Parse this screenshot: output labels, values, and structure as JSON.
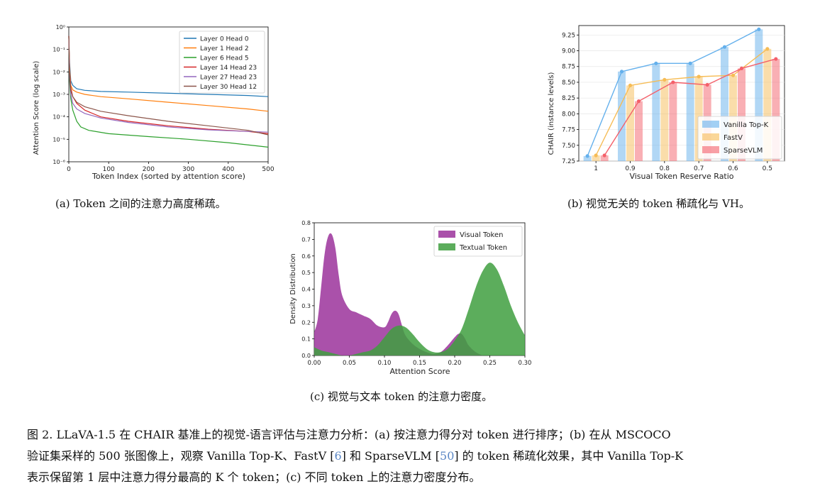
{
  "figure_a": {
    "subcaption": "(a) Token 之间的注意力高度稀疏。",
    "chart_data": {
      "type": "line",
      "ylabel": "Attention Score (log scale)",
      "xlabel": "Token Index (sorted by attention score)",
      "xlim": [
        0,
        500
      ],
      "ylim_log10": [
        -6,
        0
      ],
      "x_ticks": [
        "0",
        "100",
        "200",
        "300",
        "400",
        "500"
      ],
      "y_ticks": [
        "10⁻⁶",
        "10⁻⁵",
        "10⁻⁴",
        "10⁻³",
        "10⁻²",
        "10⁻¹",
        "10⁰"
      ],
      "legend_position": "top-right",
      "series": [
        {
          "name": "Layer 0 Head 0",
          "color": "#1f77b4",
          "x": [
            0,
            2,
            5,
            10,
            20,
            40,
            80,
            150,
            250,
            350,
            450,
            500
          ],
          "log_y": [
            -0.4,
            -1.6,
            -2.4,
            -2.6,
            -2.75,
            -2.82,
            -2.87,
            -2.9,
            -2.95,
            -3.0,
            -3.05,
            -3.1
          ]
        },
        {
          "name": "Layer 1 Head 2",
          "color": "#ff7f0e",
          "x": [
            0,
            2,
            5,
            10,
            20,
            40,
            80,
            150,
            250,
            350,
            450,
            500
          ],
          "log_y": [
            -0.4,
            -1.8,
            -2.6,
            -2.8,
            -2.9,
            -3.0,
            -3.1,
            -3.2,
            -3.35,
            -3.5,
            -3.65,
            -3.75
          ]
        },
        {
          "name": "Layer 6 Head 5",
          "color": "#2ca02c",
          "x": [
            0,
            2,
            5,
            10,
            20,
            30,
            50,
            100,
            200,
            300,
            400,
            500
          ],
          "log_y": [
            -0.4,
            -2.4,
            -3.2,
            -3.7,
            -4.2,
            -4.45,
            -4.6,
            -4.75,
            -4.88,
            -5.0,
            -5.15,
            -5.35
          ]
        },
        {
          "name": "Layer 14 Head 23",
          "color": "#d62728",
          "x": [
            0,
            2,
            5,
            10,
            20,
            40,
            80,
            150,
            250,
            350,
            450,
            500
          ],
          "log_y": [
            -0.4,
            -2.0,
            -2.7,
            -3.1,
            -3.4,
            -3.7,
            -4.0,
            -4.2,
            -4.4,
            -4.55,
            -4.65,
            -4.75
          ]
        },
        {
          "name": "Layer 27 Head 23",
          "color": "#9467bd",
          "x": [
            0,
            2,
            5,
            10,
            20,
            40,
            80,
            150,
            250,
            350,
            450,
            500
          ],
          "log_y": [
            -0.4,
            -2.2,
            -3.0,
            -3.4,
            -3.65,
            -3.85,
            -4.05,
            -4.25,
            -4.45,
            -4.58,
            -4.65,
            -4.68
          ]
        },
        {
          "name": "Layer 30 Head 12",
          "color": "#8c564b",
          "x": [
            0,
            2,
            5,
            10,
            20,
            40,
            80,
            150,
            250,
            350,
            450,
            500
          ],
          "log_y": [
            -0.4,
            -2.1,
            -2.85,
            -3.1,
            -3.35,
            -3.55,
            -3.75,
            -3.95,
            -4.2,
            -4.4,
            -4.6,
            -4.8
          ]
        }
      ]
    }
  },
  "figure_b": {
    "subcaption": "(b) 视觉无关的 token 稀疏化与 VH。",
    "chart_data": {
      "type": "bar",
      "ylabel": "CHAIR (instance levels)",
      "xlabel": "Visual Token Reserve Ratio",
      "categories": [
        "1",
        "0.9",
        "0.8",
        "0.7",
        "0.6",
        "0.5"
      ],
      "ylim": [
        7.25,
        9.4
      ],
      "y_ticks": [
        "7.25",
        "7.50",
        "7.75",
        "8.00",
        "8.25",
        "8.50",
        "8.75",
        "9.00",
        "9.25"
      ],
      "legend_position": "bottom-right",
      "series": [
        {
          "name": "Vanilla Top-K",
          "color": "#64b0ec",
          "values": [
            7.33,
            8.67,
            8.8,
            8.8,
            9.06,
            9.34
          ]
        },
        {
          "name": "FastV",
          "color": "#f6bc55",
          "values": [
            7.34,
            8.45,
            8.54,
            8.59,
            8.61,
            9.03
          ]
        },
        {
          "name": "SparseVLM",
          "color": "#f4606a",
          "values": [
            7.34,
            8.2,
            8.5,
            8.46,
            8.72,
            8.87
          ]
        }
      ]
    }
  },
  "figure_c": {
    "subcaption": "(c) 视觉与文本 token 的注意力密度。",
    "chart_data": {
      "type": "area",
      "ylabel": "Density Distribution",
      "xlabel": "Attention Score",
      "xlim": [
        0,
        0.3
      ],
      "ylim": [
        0,
        0.8
      ],
      "x_ticks": [
        "0.00",
        "0.05",
        "0.10",
        "0.15",
        "0.20",
        "0.25",
        "0.30"
      ],
      "y_ticks": [
        "0.0",
        "0.1",
        "0.2",
        "0.3",
        "0.4",
        "0.5",
        "0.6",
        "0.7",
        "0.8"
      ],
      "legend_position": "top-right",
      "series": [
        {
          "name": "Visual Token",
          "color": "#9b339b",
          "x": [
            0,
            0.005,
            0.01,
            0.015,
            0.02,
            0.025,
            0.03,
            0.035,
            0.04,
            0.05,
            0.06,
            0.07,
            0.08,
            0.09,
            0.1,
            0.105,
            0.11,
            0.115,
            0.12,
            0.125,
            0.13,
            0.14,
            0.15,
            0.16,
            0.17,
            0.18,
            0.19,
            0.2,
            0.205,
            0.21,
            0.215,
            0.22,
            0.23,
            0.24
          ],
          "y": [
            0.14,
            0.22,
            0.42,
            0.62,
            0.72,
            0.73,
            0.65,
            0.48,
            0.36,
            0.28,
            0.26,
            0.24,
            0.22,
            0.18,
            0.17,
            0.2,
            0.25,
            0.27,
            0.25,
            0.18,
            0.12,
            0.07,
            0.04,
            0.02,
            0.01,
            0.02,
            0.06,
            0.11,
            0.13,
            0.13,
            0.1,
            0.06,
            0.02,
            0.0
          ]
        },
        {
          "name": "Textual Token",
          "color": "#3f9f3f",
          "x": [
            0,
            0.01,
            0.02,
            0.03,
            0.04,
            0.05,
            0.06,
            0.07,
            0.08,
            0.09,
            0.1,
            0.11,
            0.12,
            0.13,
            0.14,
            0.15,
            0.16,
            0.17,
            0.18,
            0.19,
            0.2,
            0.21,
            0.22,
            0.23,
            0.24,
            0.25,
            0.26,
            0.27,
            0.28,
            0.29,
            0.3
          ],
          "y": [
            0.05,
            0.03,
            0.02,
            0.01,
            0.0,
            0.0,
            0.01,
            0.02,
            0.03,
            0.06,
            0.11,
            0.16,
            0.18,
            0.17,
            0.13,
            0.08,
            0.04,
            0.02,
            0.02,
            0.04,
            0.09,
            0.16,
            0.28,
            0.41,
            0.51,
            0.56,
            0.52,
            0.42,
            0.3,
            0.2,
            0.12
          ]
        }
      ]
    }
  },
  "caption": {
    "p1": "图 2. LLaVA-1.5 在 CHAIR 基准上的视觉-语言评估与注意力分析：(a) 按注意力得分对 token 进行排序；(b) 在从 MSCOCO",
    "p2a": "验证集采样的 500 张图像上，观察 Vanilla Top-K、FastV [",
    "ref1": "6",
    "p2b": "] 和 SparseVLM [",
    "ref2": "50",
    "p2c": "] 的 token 稀疏化效果，其中 Vanilla Top-K",
    "p3": "表示保留第 1 层中注意力得分最高的 K 个 token；(c) 不同 token 上的注意力密度分布。"
  }
}
